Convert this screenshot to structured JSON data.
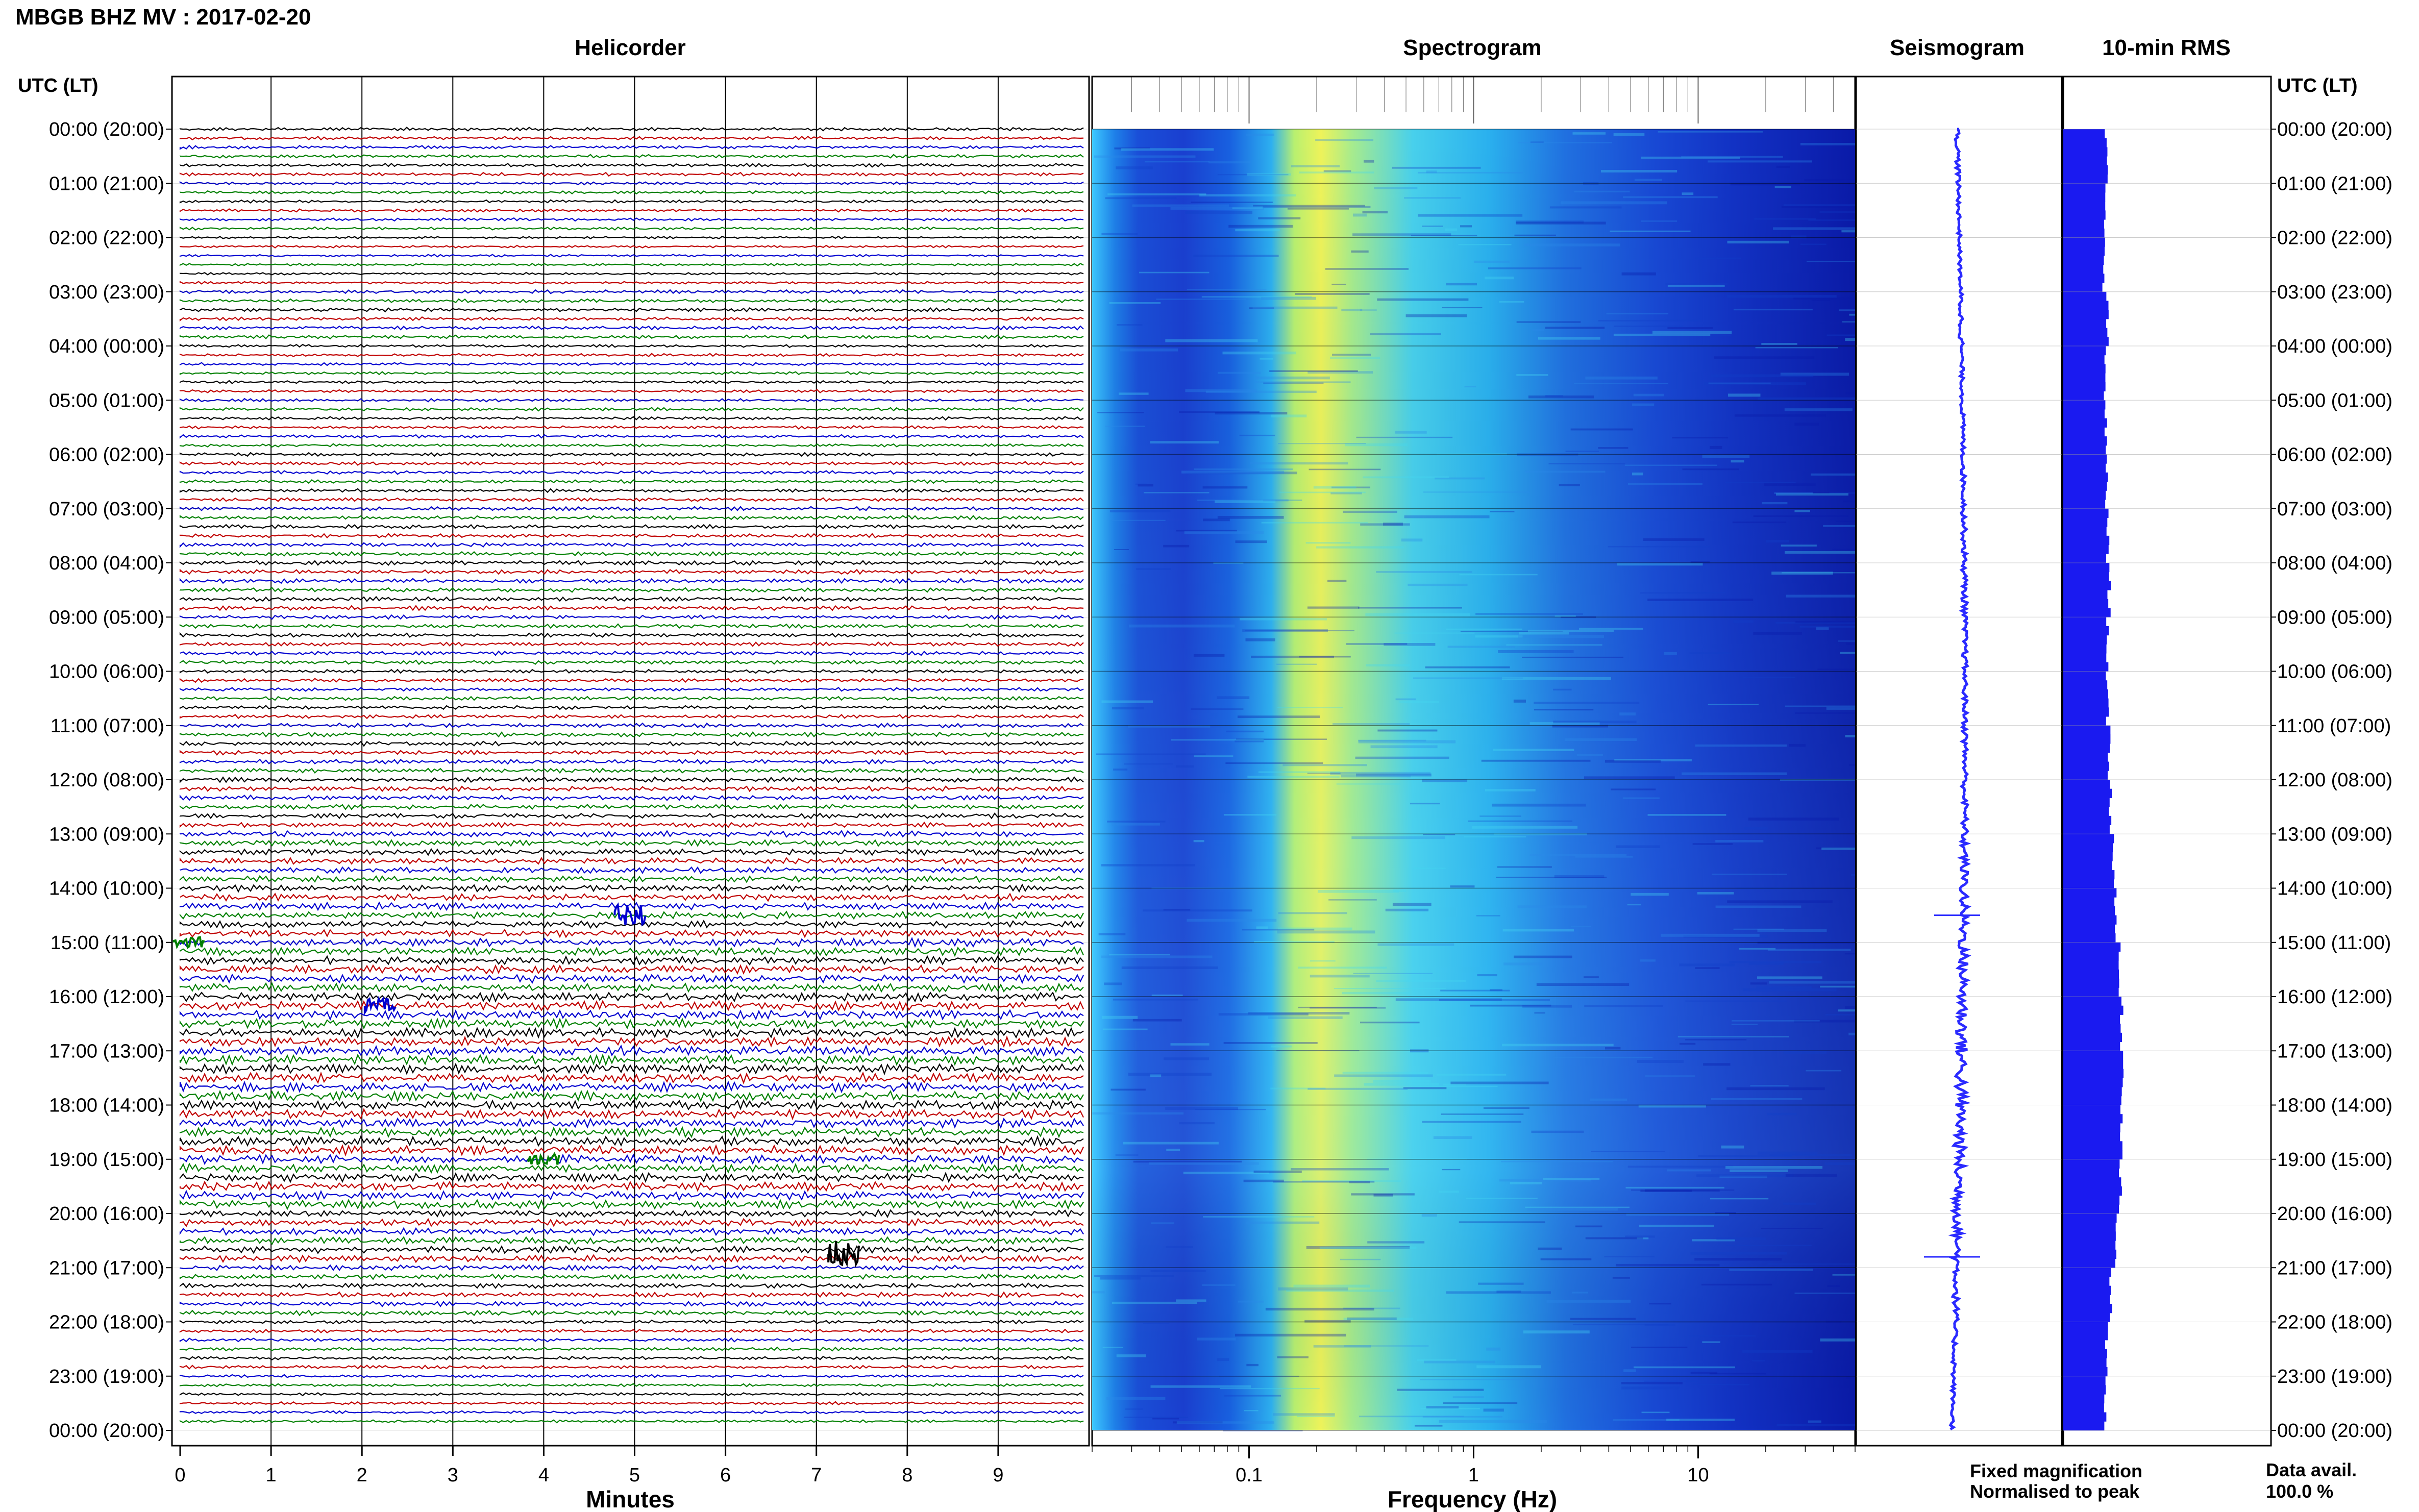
{
  "header": {
    "station_title": "MBGB BHZ MV : 2017-02-20",
    "utc_label_left": "UTC (LT)",
    "utc_label_right": "UTC (LT)"
  },
  "panels": {
    "helicorder_title": "Helicorder",
    "spectrogram_title": "Spectrogram",
    "seismogram_title": "Seismogram",
    "rms_title": "10-min RMS"
  },
  "time_labels": [
    "00:00 (20:00)",
    "01:00 (21:00)",
    "02:00 (22:00)",
    "03:00 (23:00)",
    "04:00 (00:00)",
    "05:00 (01:00)",
    "06:00 (02:00)",
    "07:00 (03:00)",
    "08:00 (04:00)",
    "09:00 (05:00)",
    "10:00 (06:00)",
    "11:00 (07:00)",
    "12:00 (08:00)",
    "13:00 (09:00)",
    "14:00 (10:00)",
    "15:00 (11:00)",
    "16:00 (12:00)",
    "17:00 (13:00)",
    "18:00 (14:00)",
    "19:00 (15:00)",
    "20:00 (16:00)",
    "21:00 (17:00)",
    "22:00 (18:00)",
    "23:00 (19:00)",
    "00:00 (20:00)"
  ],
  "footer": {
    "minutes_label": "Minutes",
    "frequency_label": "Frequency (Hz)",
    "legend_fixed": "Fixed magnification",
    "legend_normalised": "Normalised to peak",
    "data_avail_label": "Data avail.",
    "data_avail_value": "100.0 %"
  },
  "colors": {
    "trace_cycle": [
      "#000000",
      "#c00000",
      "#0000d0",
      "#008000"
    ],
    "legend_fixed": "#1e1ee6",
    "legend_normalised": "#e61e1e",
    "bars": "#1a1af0",
    "seismogram": "#2a2aff"
  },
  "chart_data": [
    {
      "type": "line",
      "title": "Helicorder",
      "xlabel": "Minutes",
      "x_ticks": [
        "0",
        "1",
        "2",
        "3",
        "4",
        "5",
        "6",
        "7",
        "8",
        "9"
      ],
      "xlim": [
        0,
        10
      ],
      "rows_per_hour": 6,
      "hours": 24,
      "events": [
        {
          "hour": 14.5,
          "minute": 4.95,
          "color": "blue",
          "amp": 3
        },
        {
          "hour": 20.75,
          "minute": 7.3,
          "color": "black",
          "amp": 4
        },
        {
          "hour": 16.17,
          "minute": 2.2,
          "color": "blue",
          "amp": 2
        },
        {
          "hour": 19.0,
          "minute": 4.0,
          "color": "green",
          "amp": 1.5
        },
        {
          "hour": 15.0,
          "minute": 0.1,
          "color": "green",
          "amp": 1.5
        }
      ]
    },
    {
      "type": "heatmap",
      "title": "Spectrogram",
      "xlabel": "Frequency (Hz)",
      "x_scale": "log",
      "xlim": [
        0.02,
        50
      ],
      "x_ticks": [
        "0.1",
        "1",
        "10"
      ],
      "peak_band_hz": [
        0.17,
        0.35
      ]
    },
    {
      "type": "line",
      "title": "Seismogram",
      "note": "long-period trace vs time of day"
    },
    {
      "type": "bar",
      "title": "10-min RMS",
      "categories_per_hour": 6,
      "hourly_relative_levels": [
        0.62,
        0.6,
        0.58,
        0.63,
        0.6,
        0.61,
        0.62,
        0.64,
        0.66,
        0.64,
        0.63,
        0.66,
        0.68,
        0.72,
        0.76,
        0.8,
        0.84,
        0.86,
        0.84,
        0.82,
        0.76,
        0.68,
        0.62,
        0.6
      ]
    }
  ]
}
